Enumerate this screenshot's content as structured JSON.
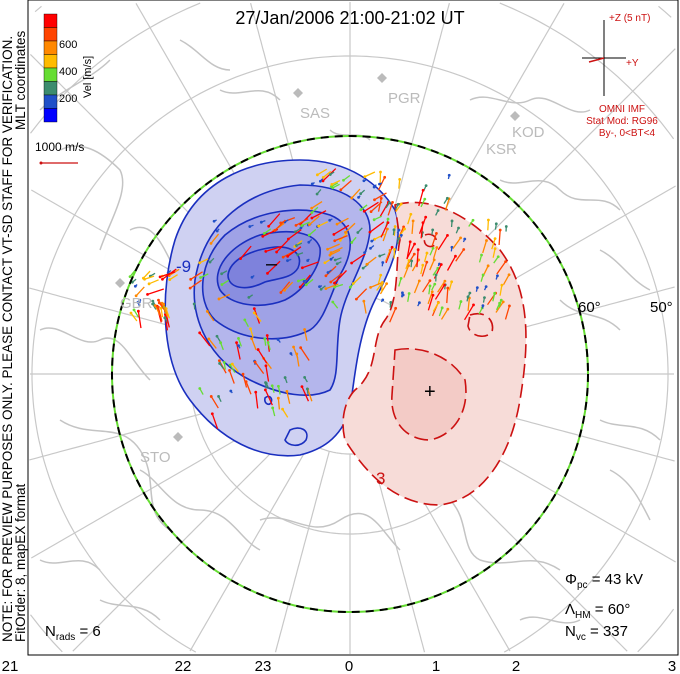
{
  "title": "27/Jan/2006 21:00-21:02 UT",
  "side_text": {
    "coords": "MLT coordinates",
    "watermark": "NOTE: FOR PREVIEW PURPOSES ONLY. PLEASE CONTACT VT-SD STAFF FOR VERIFICATION.",
    "fit": "FitOrder: 8, mapEX format"
  },
  "colorbar": {
    "label": "Vel [m/s]",
    "ticks": [
      "200",
      "400",
      "600"
    ],
    "colors": [
      "#0000ff",
      "#2050c8",
      "#3c8c6e",
      "#66dd33",
      "#ffbb00",
      "#ff8800",
      "#ff4400",
      "#ff0000"
    ]
  },
  "scale_label": "1000 m/s",
  "imf": {
    "z_label": "+Z (5 nT)",
    "y_label": "+Y",
    "source": "OMNI IMF",
    "model": "Stat Mod: RG96",
    "condition": "By-, 0<BT<4"
  },
  "stations": [
    "SAS",
    "PGR",
    "KSR",
    "KOD",
    "GBR",
    "STO"
  ],
  "lat_labels": [
    "60°",
    "50°"
  ],
  "contour_labels": [
    "3",
    "-9"
  ],
  "markers": {
    "min": "–",
    "max": "+"
  },
  "stats": {
    "phi_pc": "43 kV",
    "lambda_hm": "60°",
    "n_vc": "337",
    "n_rads": "6"
  },
  "mlt_ticks": [
    "21",
    "22",
    "23",
    "0",
    "1",
    "2",
    "3"
  ],
  "colors": {
    "neg": "#1a2fbf",
    "pos": "#cc1111",
    "neg_fill": "#c9cbf0",
    "pos_fill": "#f7dcd8"
  }
}
